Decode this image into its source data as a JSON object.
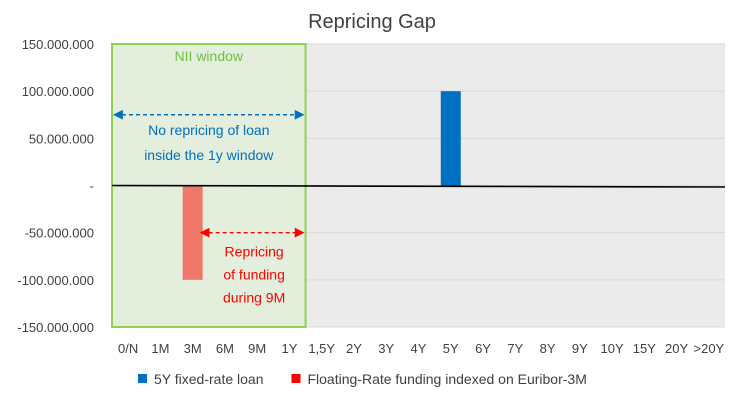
{
  "chart_data": {
    "type": "bar",
    "title": "Repricing Gap",
    "categories": [
      "0/N",
      "1M",
      "3M",
      "6M",
      "9M",
      "1Y",
      "1,5Y",
      "2Y",
      "3Y",
      "4Y",
      "5Y",
      "6Y",
      "7Y",
      "8Y",
      "9Y",
      "10Y",
      "15Y",
      "20Y",
      ">20Y"
    ],
    "series": [
      {
        "name": "5Y fixed-rate loan",
        "color": "#0070C0",
        "values": [
          0,
          0,
          0,
          0,
          0,
          0,
          0,
          0,
          0,
          0,
          100000000,
          0,
          0,
          0,
          0,
          0,
          0,
          0,
          0
        ]
      },
      {
        "name": "Floating-Rate funding indexed on Euribor-3M",
        "color": "#FF0000",
        "bar_color": "#F07868",
        "values": [
          0,
          0,
          -100000000,
          0,
          0,
          0,
          0,
          0,
          0,
          0,
          0,
          0,
          0,
          0,
          0,
          0,
          0,
          0,
          0
        ]
      }
    ],
    "ylim": [
      -150000000,
      150000000
    ],
    "yticks": [
      150000000,
      100000000,
      50000000,
      0,
      -50000000,
      -100000000,
      -150000000
    ],
    "ytick_labels": [
      "150.000.000",
      "100.000.000",
      "50.000.000",
      "-",
      "-50.000.000",
      "-100.000.000",
      "-150.000.000"
    ],
    "xlabel": "",
    "ylabel": "",
    "grid": true,
    "legend_position": "bottom",
    "window": {
      "label": "NII window",
      "from_category": "0/N",
      "to_category": "1Y",
      "fill": "#E2F0D9",
      "border": "#92D050",
      "label_color": "#70C040"
    },
    "annotations": [
      {
        "lines": [
          "No repricing of loan",
          "inside the 1y window"
        ],
        "color": "#0070C0",
        "arrow": {
          "from_category": "0/N",
          "to_category": "1Y",
          "y": 75000000
        }
      },
      {
        "lines": [
          "Repricing",
          "of funding",
          "during 9M"
        ],
        "color": "#FF0000",
        "arrow": {
          "from_category": "3M",
          "to_category": "1Y",
          "y": -50000000
        }
      }
    ]
  }
}
